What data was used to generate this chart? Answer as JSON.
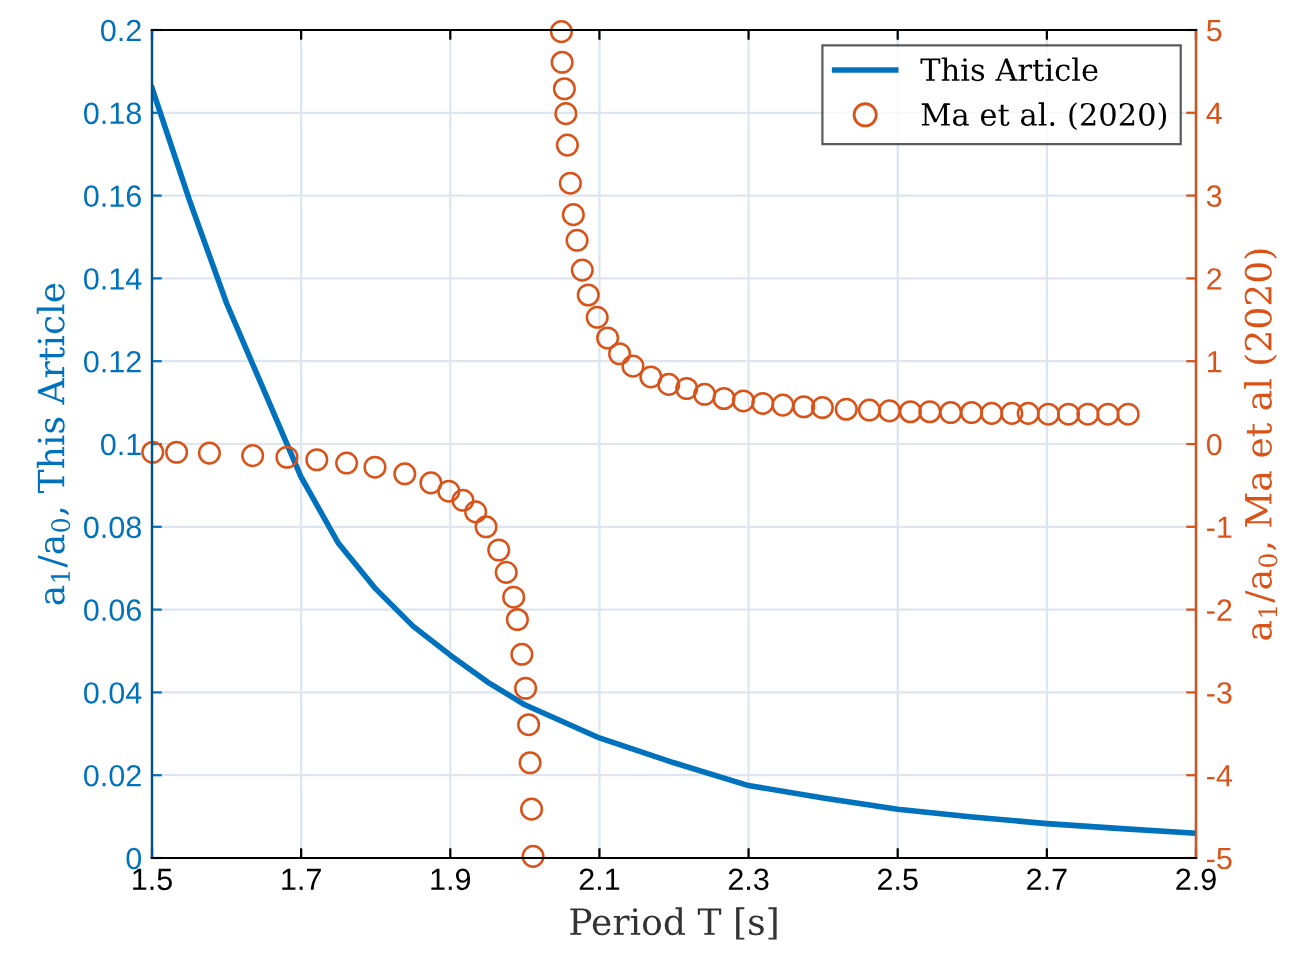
{
  "chart_data": {
    "type": "line",
    "xlabel": "Period T [s]",
    "ylabel": "a$_{1}$/a$_{0}$, This Article",
    "y2label": "a$_{1}$/a$_{0}$, Ma et al (2020)",
    "xlim": [
      1.5,
      2.9
    ],
    "xticks": [
      1.5,
      1.7,
      1.9,
      2.1,
      2.3,
      2.5,
      2.7,
      2.9
    ],
    "ylim": [
      0,
      0.2
    ],
    "yticks": [
      0,
      0.02,
      0.04,
      0.06,
      0.08,
      0.1,
      0.12,
      0.14,
      0.16,
      0.18,
      0.2
    ],
    "y2lim": [
      -5,
      5
    ],
    "y2ticks": [
      -5,
      -4,
      -3,
      -2,
      -1,
      0,
      1,
      2,
      3,
      4,
      5
    ],
    "grid": true,
    "legend": "top right",
    "series": [
      {
        "name": "This Article",
        "type": "line",
        "color": "#0072bd",
        "marker": "none",
        "line_style": "solid",
        "x": [
          1.5,
          1.55,
          1.6,
          1.65,
          1.7,
          1.75,
          1.8,
          1.85,
          1.9,
          1.95,
          2.0,
          2.1,
          2.2,
          2.3,
          2.4,
          2.5,
          2.6,
          2.7,
          2.8,
          2.9
        ],
        "values": [
          0.186,
          0.159,
          0.134,
          0.113,
          0.092,
          0.076,
          0.065,
          0.056,
          0.049,
          0.0425,
          0.037,
          0.029,
          0.023,
          0.0175,
          0.0145,
          0.0118,
          0.0099,
          0.0083,
          0.0071,
          0.006
        ]
      },
      {
        "name": "Ma et al. (2020)",
        "type": "scatter",
        "axis": "y2",
        "color": "#d95319",
        "marker": "circle",
        "x": [
          1.501,
          1.533,
          1.577,
          1.635,
          1.681,
          1.721,
          1.761,
          1.799,
          1.839,
          1.874,
          1.898,
          1.917,
          1.934,
          1.948,
          1.965,
          1.975,
          1.985,
          1.99,
          1.996,
          2.001,
          2.005,
          2.007,
          2.009,
          2.011,
          2.049,
          2.05,
          2.053,
          2.055,
          2.057,
          2.061,
          2.065,
          2.07,
          2.077,
          2.085,
          2.097,
          2.111,
          2.127,
          2.145,
          2.169,
          2.193,
          2.217,
          2.241,
          2.267,
          2.293,
          2.319,
          2.346,
          2.374,
          2.399,
          2.431,
          2.462,
          2.489,
          2.517,
          2.543,
          2.571,
          2.599,
          2.626,
          2.653,
          2.675,
          2.702,
          2.729,
          2.755,
          2.782,
          2.809
        ],
        "values": [
          -0.1,
          -0.1,
          -0.11,
          -0.14,
          -0.16,
          -0.19,
          -0.23,
          -0.28,
          -0.36,
          -0.47,
          -0.57,
          -0.68,
          -0.82,
          -1.0,
          -1.28,
          -1.55,
          -1.85,
          -2.12,
          -2.54,
          -2.95,
          -3.39,
          -3.85,
          -4.41,
          -4.98,
          4.98,
          4.61,
          4.29,
          3.99,
          3.61,
          3.15,
          2.77,
          2.46,
          2.1,
          1.8,
          1.53,
          1.28,
          1.09,
          0.94,
          0.81,
          0.72,
          0.67,
          0.6,
          0.55,
          0.52,
          0.49,
          0.47,
          0.45,
          0.44,
          0.42,
          0.41,
          0.4,
          0.39,
          0.39,
          0.38,
          0.38,
          0.37,
          0.37,
          0.37,
          0.36,
          0.36,
          0.36,
          0.36,
          0.36
        ]
      }
    ]
  }
}
